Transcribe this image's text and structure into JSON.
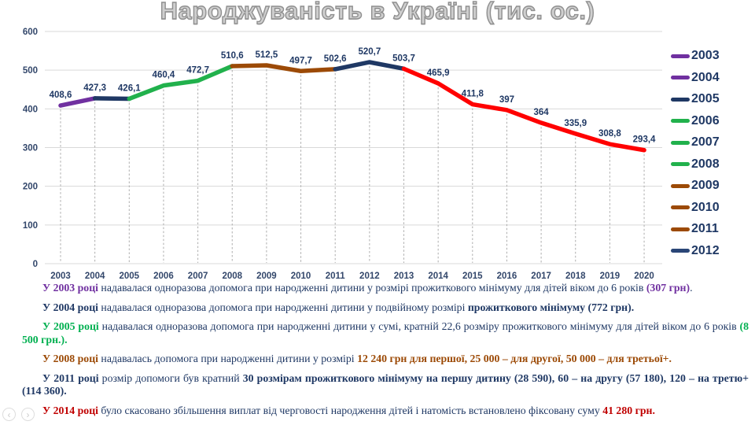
{
  "title": "Народжуваність в Україні (тис. ос.)",
  "chart_data": {
    "type": "line",
    "title": "Народжуваність в Україні (тис. ос.)",
    "categories": [
      "2003",
      "2004",
      "2005",
      "2006",
      "2007",
      "2008",
      "2009",
      "2010",
      "2011",
      "2012",
      "2013",
      "2014",
      "2015",
      "2016",
      "2017",
      "2018",
      "2019",
      "2020"
    ],
    "values": [
      408.6,
      427.3,
      426.1,
      460.4,
      472.7,
      510.6,
      512.5,
      497.7,
      502.6,
      520.7,
      503.7,
      465.9,
      411.8,
      397,
      364,
      335.9,
      308.8,
      293.4
    ],
    "point_labels": [
      "408,6",
      "427,3",
      "426,1",
      "460,4",
      "472,7",
      "510,6",
      "512,5",
      "497,7",
      "502,6",
      "520,7",
      "503,7",
      "465,9",
      "411,8",
      "397",
      "364",
      "335,9",
      "308,8",
      "293,4"
    ],
    "ylim": [
      0,
      600
    ],
    "yticks": [
      0,
      100,
      200,
      300,
      400,
      500,
      600
    ],
    "grid": true,
    "legend_position": "right",
    "segment_colors": [
      "#7030A0",
      "#1F3864",
      "#21B14C",
      "#21B14C",
      "#21B14C",
      "#9C4A06",
      "#9C4A06",
      "#9C4A06",
      "#1F3864",
      "#1F3864",
      "#FF0000",
      "#FF0000",
      "#FF0000",
      "#FF0000",
      "#FF0000",
      "#FF0000",
      "#FF0000"
    ]
  },
  "legend": {
    "items": [
      {
        "label": "2003",
        "color": "#7030A0"
      },
      {
        "label": "2004",
        "color": "#7030A0"
      },
      {
        "label": "2005",
        "color": "#1F3864"
      },
      {
        "label": "2006",
        "color": "#21B14C"
      },
      {
        "label": "2007",
        "color": "#21B14C"
      },
      {
        "label": "2008",
        "color": "#21B14C"
      },
      {
        "label": "2009",
        "color": "#9C4A06"
      },
      {
        "label": "2010",
        "color": "#9C4A06"
      },
      {
        "label": "2011",
        "color": "#9C4A06"
      },
      {
        "label": "2012",
        "color": "#2A4677"
      }
    ]
  },
  "notes": [
    {
      "segments": [
        {
          "text": "У 2003 році",
          "bold": true,
          "color": "#7030A0"
        },
        {
          "text": " надавалася одноразова допомога при народженні дитини у розмірі прожиткового мінімуму для дітей віком до 6 років ",
          "bold": false
        },
        {
          "text": "(307 грн)",
          "bold": true,
          "color": "#7030A0"
        },
        {
          "text": ".",
          "bold": false
        }
      ]
    },
    {
      "segments": [
        {
          "text": "У 2004 році",
          "bold": true,
          "color": "#1F3864"
        },
        {
          "text": " надавалася одноразова допомога при народженні дитини у подвійному розмірі ",
          "bold": false
        },
        {
          "text": "прожиткового мінімуму (772 грн).",
          "bold": true,
          "color": "#1F3864"
        }
      ]
    },
    {
      "segments": [
        {
          "text": "У 2005 році",
          "bold": true,
          "color": "#00B050"
        },
        {
          "text": " надавалася одноразова допомога при народженні дитини у сумі, кратній 22,6 розміру прожиткового мінімуму для дітей віком до 6 років ",
          "bold": false
        },
        {
          "text": "(8 500 грн.).",
          "bold": true,
          "color": "#00B050"
        }
      ]
    },
    {
      "segments": [
        {
          "text": "У 2008 році",
          "bold": true,
          "color": "#9C4A06"
        },
        {
          "text": " надавалась допомога при народженні дитини у розмірі ",
          "bold": false
        },
        {
          "text": "12 240 грн для першої, 25 000 – для другої, 50 000 – для третьої+.",
          "bold": true,
          "color": "#9C4A06"
        }
      ]
    },
    {
      "segments": [
        {
          "text": "У 2011 році",
          "bold": true,
          "color": "#1F3864"
        },
        {
          "text": " розмір допомоги був кратний ",
          "bold": false
        },
        {
          "text": "30 розмірам прожиткового мінімуму на першу дитину (28 590), 60 – на другу (57 180), 120 – на третю+ (114 360).",
          "bold": true,
          "color": "#1F3864"
        }
      ]
    },
    {
      "segments": [
        {
          "text": "У 2014 році",
          "bold": true,
          "color": "#C00000"
        },
        {
          "text": " було скасовано збільшення виплат від черговості народження дітей і натомість встановлено фіксовану суму ",
          "bold": false
        },
        {
          "text": "41 280 грн.",
          "bold": true,
          "color": "#C00000"
        }
      ]
    }
  ],
  "nav": {
    "prev": "‹",
    "next": "›"
  },
  "colors": {
    "text_navy": "#1F3864",
    "axis_label": "#33476B",
    "grid": "#D9D9D9",
    "drop_line": "#ADADAD",
    "data_label": "#1F3864"
  }
}
